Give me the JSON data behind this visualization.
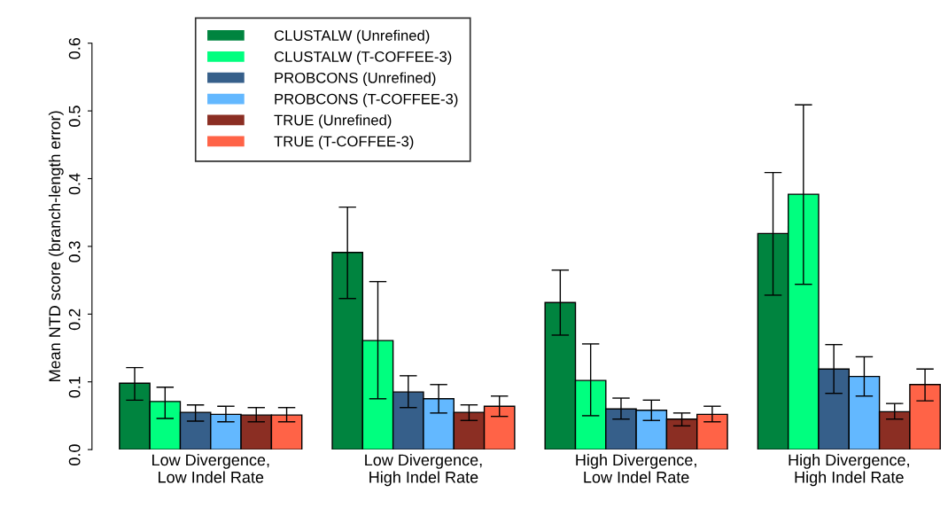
{
  "chart_data": {
    "type": "bar",
    "ylabel": "Mean NTD score (branch-length error)",
    "categories": [
      "Low Divergence,\nLow Indel Rate",
      "Low Divergence,\nHigh Indel Rate",
      "High Divergence,\nLow Indel Rate",
      "High Divergence,\nHigh Indel Rate"
    ],
    "ylim": [
      0,
      0.6
    ],
    "yticks": [
      {
        "value": 0,
        "label": "0.0"
      },
      0.1,
      0.2,
      0.3,
      0.4,
      0.5,
      0.6
    ],
    "grid": false,
    "legend": "top left",
    "series": [
      {
        "name": "CLUSTALW (Unrefined)",
        "color": "#00843f",
        "values": [
          0.098,
          0.291,
          0.217,
          0.319
        ],
        "errors": [
          [
            0.073,
            0.121
          ],
          [
            0.223,
            0.358
          ],
          [
            0.169,
            0.265
          ],
          [
            0.228,
            0.409
          ]
        ]
      },
      {
        "name": "CLUSTALW (T-COFFEE-3)",
        "color": "#00ff7f",
        "values": [
          0.071,
          0.161,
          0.102,
          0.377
        ],
        "errors": [
          [
            0.046,
            0.092
          ],
          [
            0.075,
            0.248
          ],
          [
            0.05,
            0.156
          ],
          [
            0.244,
            0.509
          ]
        ]
      },
      {
        "name": "PROBCONS (Unrefined)",
        "color": "#365f8a",
        "values": [
          0.055,
          0.085,
          0.06,
          0.119
        ],
        "errors": [
          [
            0.042,
            0.066
          ],
          [
            0.062,
            0.109
          ],
          [
            0.045,
            0.076
          ],
          [
            0.083,
            0.155
          ]
        ]
      },
      {
        "name": "PROBCONS (T-COFFEE-3)",
        "color": "#63b8ff",
        "values": [
          0.052,
          0.075,
          0.058,
          0.108
        ],
        "errors": [
          [
            0.041,
            0.064
          ],
          [
            0.054,
            0.096
          ],
          [
            0.043,
            0.073
          ],
          [
            0.079,
            0.137
          ]
        ]
      },
      {
        "name": "TRUE (Unrefined)",
        "color": "#8b2e23",
        "values": [
          0.051,
          0.055,
          0.045,
          0.056
        ],
        "errors": [
          [
            0.041,
            0.062
          ],
          [
            0.043,
            0.066
          ],
          [
            0.035,
            0.054
          ],
          [
            0.045,
            0.068
          ]
        ]
      },
      {
        "name": "TRUE (T-COFFEE-3)",
        "color": "#ff6347",
        "values": [
          0.051,
          0.064,
          0.052,
          0.096
        ],
        "errors": [
          [
            0.041,
            0.062
          ],
          [
            0.049,
            0.079
          ],
          [
            0.041,
            0.064
          ],
          [
            0.072,
            0.119
          ]
        ]
      }
    ]
  }
}
